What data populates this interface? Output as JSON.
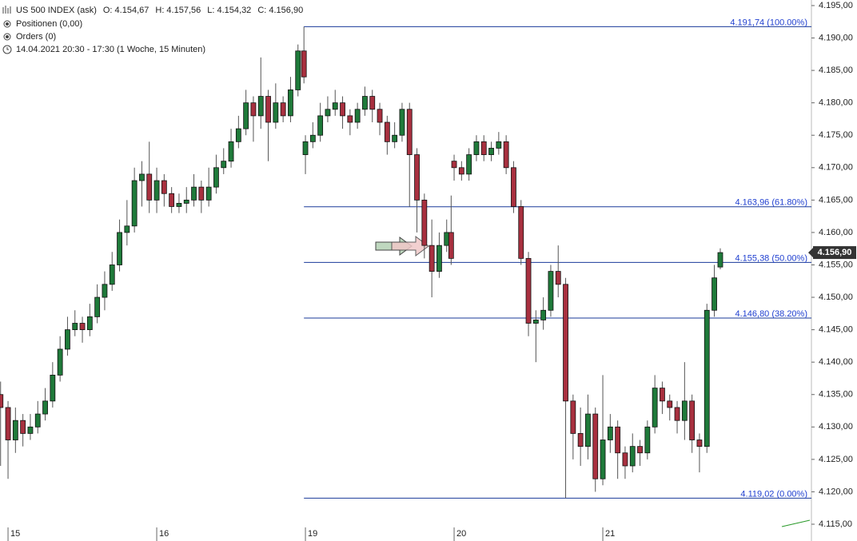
{
  "chart_data": {
    "type": "candlestick",
    "title": "US 500 INDEX (ask)",
    "ohlc_texts": [
      "O: 4.154,67",
      "H: 4.157,56",
      "L: 4.154,32",
      "C: 4.156,90"
    ],
    "info_lines": [
      "Positionen (0,00)",
      "Orders (0)",
      "14.04.2021 20:30 - 17:30   (1 Woche, 15 Minuten)"
    ],
    "up_color": "#1f7a3a",
    "down_color": "#a8303f",
    "xlim": [
      -0.054,
      5.403
    ],
    "ylim": [
      4112.41,
      4195.86
    ],
    "xticks": [
      {
        "value": 0,
        "label": "15"
      },
      {
        "value": 1,
        "label": "16"
      },
      {
        "value": 2,
        "label": "19"
      },
      {
        "value": 3,
        "label": "20"
      },
      {
        "value": 4,
        "label": "21"
      }
    ],
    "yticks": [
      {
        "value": 4115,
        "label": "4.115,00"
      },
      {
        "value": 4120,
        "label": "4.120,00"
      },
      {
        "value": 4125,
        "label": "4.125,00"
      },
      {
        "value": 4130,
        "label": "4.130,00"
      },
      {
        "value": 4135,
        "label": "4.135,00"
      },
      {
        "value": 4140,
        "label": "4.140,00"
      },
      {
        "value": 4145,
        "label": "4.145,00"
      },
      {
        "value": 4150,
        "label": "4.150,00"
      },
      {
        "value": 4155,
        "label": "4.155,00"
      },
      {
        "value": 4160,
        "label": "4.160,00"
      },
      {
        "value": 4165,
        "label": "4.165,00"
      },
      {
        "value": 4170,
        "label": "4.170,00"
      },
      {
        "value": 4175,
        "label": "4.175,00"
      },
      {
        "value": 4180,
        "label": "4.180,00"
      },
      {
        "value": 4185,
        "label": "4.185,00"
      },
      {
        "value": 4190,
        "label": "4.190,00"
      },
      {
        "value": 4195,
        "label": "4.195,00"
      }
    ],
    "x": [
      -0.05,
      0,
      0.05,
      0.1,
      0.15,
      0.2,
      0.25,
      0.3,
      0.35,
      0.4,
      0.45,
      0.5,
      0.55,
      0.6,
      0.65,
      0.7,
      0.75,
      0.8,
      0.85,
      0.9,
      0.95,
      1,
      1.05,
      1.1,
      1.15,
      1.2,
      1.25,
      1.3,
      1.35,
      1.4,
      1.45,
      1.5,
      1.55,
      1.6,
      1.65,
      1.7,
      1.75,
      1.8,
      1.85,
      1.9,
      1.95,
      1.99,
      2,
      2.05,
      2.1,
      2.15,
      2.2,
      2.25,
      2.3,
      2.35,
      2.4,
      2.45,
      2.5,
      2.55,
      2.6,
      2.65,
      2.7,
      2.75,
      2.8,
      2.85,
      2.9,
      2.95,
      2.98,
      3,
      3.05,
      3.1,
      3.15,
      3.2,
      3.25,
      3.3,
      3.35,
      3.4,
      3.45,
      3.5,
      3.55,
      3.6,
      3.65,
      3.7,
      3.75,
      3.8,
      3.85,
      3.9,
      3.95,
      4,
      4.05,
      4.1,
      4.15,
      4.2,
      4.25,
      4.3,
      4.35,
      4.4,
      4.45,
      4.5,
      4.55,
      4.6,
      4.65,
      4.7,
      4.75,
      4.79
    ],
    "open": [
      4135,
      4133,
      4128,
      4131,
      4129,
      4130,
      4132,
      4134,
      4138,
      4142,
      4145,
      4146,
      4145,
      4147,
      4150,
      4152,
      4155,
      4160,
      4161,
      4168,
      4169,
      4165,
      4168,
      4166,
      4164,
      4164.5,
      4165,
      4167,
      4165,
      4167,
      4170,
      4171,
      4174,
      4176,
      4180,
      4178,
      4181,
      4177,
      4180,
      4178,
      4182,
      4188,
      4172,
      4174,
      4175,
      4178,
      4179,
      4180,
      4178,
      4177,
      4179,
      4181,
      4179,
      4177,
      4174,
      4175,
      4179,
      4172,
      4165,
      4158,
      4154,
      4158,
      4160,
      4171,
      4170,
      4169,
      4172,
      4174,
      4172,
      4173,
      4174,
      4170,
      4164,
      4156,
      4146,
      4146.5,
      4148,
      4154,
      4152,
      4134,
      4129,
      4127,
      4132,
      4122,
      4128,
      4130,
      4126,
      4124,
      4127,
      4126,
      4130,
      4136,
      4134,
      4133,
      4131,
      4134,
      4128,
      4127,
      4148,
      4154.67
    ],
    "high": [
      4137,
      4134,
      4133,
      4132,
      4132,
      4134,
      4136,
      4140,
      4144,
      4147,
      4148,
      4147,
      4149,
      4152,
      4154,
      4157,
      4162,
      4165,
      4170,
      4171,
      4174,
      4170,
      4169,
      4167,
      4166,
      4167,
      4169,
      4168,
      4170,
      4172,
      4173,
      4176,
      4178,
      4182,
      4181,
      4187,
      4182,
      4183,
      4181,
      4184,
      4189,
      4191.74,
      4175,
      4177,
      4180,
      4181,
      4182,
      4181,
      4179,
      4180,
      4182.5,
      4182,
      4180,
      4178,
      4177,
      4180,
      4180,
      4173,
      4166,
      4162,
      4160,
      4162,
      4165.7,
      4172,
      4171,
      4173,
      4175,
      4175,
      4174,
      4175.5,
      4175,
      4171,
      4165,
      4157,
      4148,
      4150,
      4155,
      4158,
      4153,
      4135,
      4133,
      4135,
      4133,
      4138,
      4132,
      4131,
      4127,
      4129,
      4128,
      4131,
      4138,
      4137,
      4135,
      4134,
      4140,
      4135,
      4129,
      4149,
      4155,
      4157.56
    ],
    "low": [
      4124,
      4122,
      4126,
      4127,
      4128,
      4129,
      4131,
      4133,
      4137,
      4141,
      4144,
      4143,
      4144,
      4146,
      4148,
      4151,
      4154,
      4158,
      4160,
      4164,
      4163,
      4163,
      4164,
      4163,
      4163,
      4163,
      4164,
      4163,
      4164,
      4166,
      4169,
      4170,
      4173,
      4175,
      4174,
      4176,
      4171,
      4176,
      4177,
      4177,
      4181,
      4183,
      4169,
      4173,
      4174,
      4177,
      4178,
      4176,
      4175,
      4176,
      4178,
      4177,
      4175,
      4172,
      4173,
      4174,
      4164,
      4160,
      4156,
      4150,
      4153,
      4157,
      4155,
      4168,
      4168,
      4168,
      4171,
      4171,
      4171,
      4172,
      4169,
      4163,
      4155,
      4144,
      4140,
      4145,
      4147,
      4150,
      4119.02,
      4125,
      4124,
      4125,
      4120,
      4121,
      4126,
      4122,
      4122,
      4123,
      4124,
      4125,
      4129,
      4132,
      4131,
      4129,
      4128,
      4126,
      4123,
      4126,
      4147,
      4154.32
    ],
    "close": [
      4133,
      4128,
      4131,
      4129,
      4130,
      4132,
      4134,
      4138,
      4142,
      4145,
      4146,
      4145,
      4147,
      4150,
      4152,
      4155,
      4160,
      4161,
      4168,
      4169,
      4165,
      4168,
      4166,
      4164,
      4164.5,
      4165,
      4167,
      4165,
      4167,
      4170,
      4171,
      4174,
      4176,
      4180,
      4178,
      4181,
      4177,
      4180,
      4178,
      4182,
      4188,
      4184,
      4174,
      4175,
      4178,
      4179,
      4180,
      4178,
      4177,
      4179,
      4181,
      4179,
      4177,
      4174,
      4175,
      4179,
      4172,
      4165,
      4158,
      4154,
      4158,
      4160,
      4156,
      4170,
      4169,
      4172,
      4174,
      4172,
      4173,
      4174,
      4170,
      4164,
      4156,
      4146,
      4146.5,
      4148,
      4154,
      4152,
      4134,
      4129,
      4127,
      4132,
      4122,
      4128,
      4130,
      4126,
      4124,
      4127,
      4126,
      4130,
      4136,
      4134,
      4133,
      4131,
      4134,
      4128,
      4127,
      4148,
      4153,
      4156.9
    ],
    "fibonacci": {
      "color": "#1a3a9a",
      "label_color": "#1f3fd0",
      "x_range": [
        1.99,
        5.403
      ],
      "levels": [
        {
          "value": 4191.74,
          "label": "4.191,74 (100.00%)"
        },
        {
          "value": 4163.96,
          "label": "4.163,96 (61.80%)"
        },
        {
          "value": 4155.38,
          "label": "4.155,38 (50.00%)"
        },
        {
          "value": 4146.8,
          "label": "4.146,80 (38.20%)"
        },
        {
          "value": 4119.02,
          "label": "4.119,02 (0.00%)"
        }
      ]
    },
    "last_price": {
      "value": 4156.9,
      "label": "4.156,90"
    }
  }
}
